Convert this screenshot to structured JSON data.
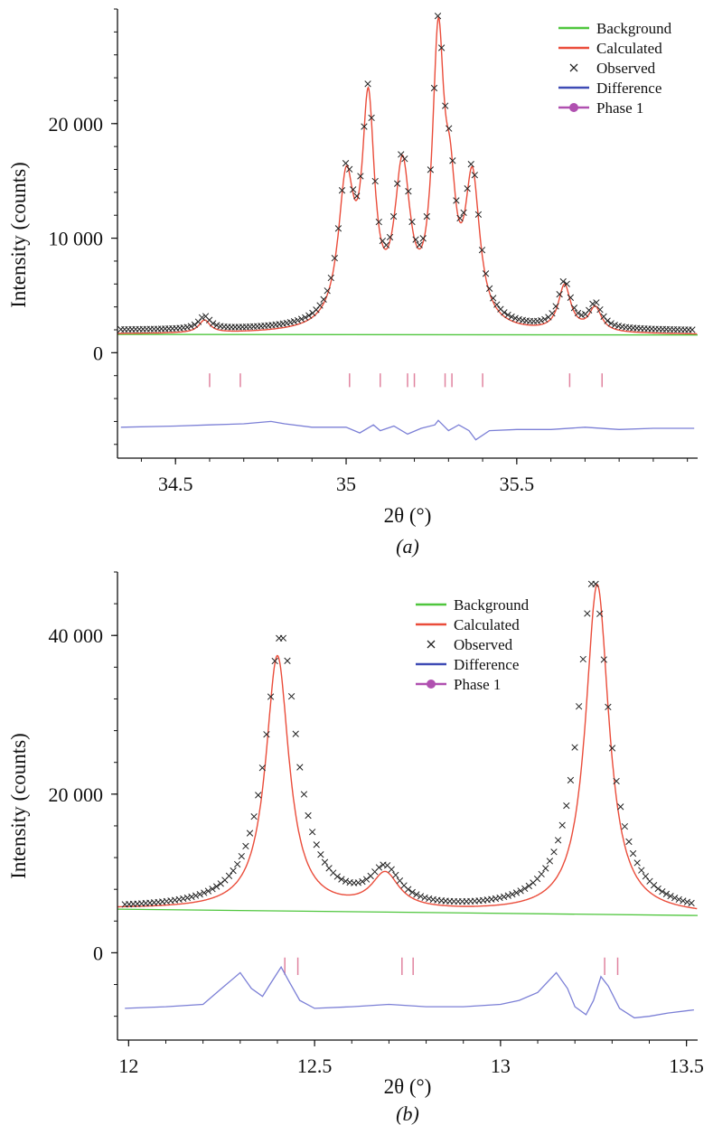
{
  "colors": {
    "background": "#4fc63d",
    "calculated": "#ea4c3a",
    "observed": "#222222",
    "difference": "#7b7fd6",
    "phase": "#e0839f",
    "legend_difference": "#3f4bb5",
    "legend_phase": "#b050b0"
  },
  "chart_data": [
    {
      "type": "line",
      "panel_label": "(a)",
      "xlabel": "2θ (°)",
      "ylabel": "Intensity (counts)",
      "xlim": [
        34.33,
        36.03
      ],
      "ylim": [
        -9200,
        30000
      ],
      "x_ticks": [
        34.5,
        35,
        35.5
      ],
      "x_tick_labels": [
        "34.5",
        "35",
        "35.5"
      ],
      "y_ticks": [
        0,
        10000,
        20000
      ],
      "y_tick_labels": [
        "0",
        "10 000",
        "20 000"
      ],
      "legend_position": "top-right",
      "legend": [
        "Background",
        "Calculated",
        "Observed",
        "Difference",
        "Phase 1"
      ],
      "background": {
        "x": [
          34.33,
          36.03
        ],
        "y": [
          1600,
          1550
        ]
      },
      "peaks": [
        {
          "center": 34.585,
          "height": 1100,
          "width": 0.02
        },
        {
          "center": 35.0,
          "height": 12200,
          "width": 0.028
        },
        {
          "center": 35.065,
          "height": 18300,
          "width": 0.022
        },
        {
          "center": 35.165,
          "height": 13200,
          "width": 0.028
        },
        {
          "center": 35.27,
          "height": 23600,
          "width": 0.021
        },
        {
          "center": 35.305,
          "height": 8200,
          "width": 0.02
        },
        {
          "center": 35.37,
          "height": 12500,
          "width": 0.026
        },
        {
          "center": 35.64,
          "height": 4000,
          "width": 0.022
        },
        {
          "center": 35.73,
          "height": 2100,
          "width": 0.022
        }
      ],
      "observed_x_range": [
        34.34,
        36.02
      ],
      "observed_step": 0.0108,
      "phase_ticks": [
        34.6,
        34.69,
        35.01,
        35.1,
        35.18,
        35.2,
        35.29,
        35.31,
        35.4,
        35.655,
        35.75
      ],
      "phase_tick_y": [
        -3000,
        -1800
      ],
      "difference_offset": -6500,
      "difference": {
        "x": [
          34.34,
          34.5,
          34.6,
          34.7,
          34.78,
          34.82,
          34.9,
          35.0,
          35.04,
          35.08,
          35.1,
          35.14,
          35.18,
          35.22,
          35.26,
          35.27,
          35.3,
          35.33,
          35.36,
          35.38,
          35.42,
          35.5,
          35.6,
          35.7,
          35.8,
          35.9,
          36.02
        ],
        "y": [
          -6500,
          -6400,
          -6300,
          -6200,
          -6000,
          -6200,
          -6500,
          -6500,
          -7000,
          -6300,
          -6800,
          -6400,
          -7100,
          -6600,
          -6300,
          -5900,
          -6800,
          -6300,
          -6800,
          -7600,
          -6800,
          -6700,
          -6700,
          -6500,
          -6700,
          -6600,
          -6600
        ]
      }
    },
    {
      "type": "line",
      "panel_label": "(b)",
      "xlabel": "2θ (°)",
      "ylabel": "Intensity (counts)",
      "xlim": [
        11.97,
        13.53
      ],
      "ylim": [
        -11000,
        48000
      ],
      "x_ticks": [
        12,
        12.5,
        13,
        13.5
      ],
      "x_tick_labels": [
        "12",
        "12.5",
        "13",
        "13.5"
      ],
      "y_ticks": [
        0,
        20000,
        40000
      ],
      "y_tick_labels": [
        "0",
        "20 000",
        "40 000"
      ],
      "legend_position": "top-right",
      "legend": [
        "Background",
        "Calculated",
        "Observed",
        "Difference",
        "Phase 1"
      ],
      "background": {
        "x": [
          11.97,
          13.53
        ],
        "y": [
          5500,
          4700
        ]
      },
      "calc_peaks": [
        {
          "center": 12.4,
          "height": 32000,
          "width": 0.038
        },
        {
          "center": 12.69,
          "height": 4400,
          "width": 0.045
        },
        {
          "center": 13.26,
          "height": 41500,
          "width": 0.038
        }
      ],
      "obs_peaks": [
        {
          "center": 12.41,
          "height": 34500,
          "width": 0.052
        },
        {
          "center": 12.69,
          "height": 4500,
          "width": 0.048
        },
        {
          "center": 13.25,
          "height": 42000,
          "width": 0.05
        }
      ],
      "observed_x_range": [
        11.99,
        13.52
      ],
      "observed_step": 0.0112,
      "phase_ticks": [
        12.42,
        12.455,
        12.735,
        12.765,
        13.28,
        13.315
      ],
      "phase_tick_y": [
        -2800,
        -600
      ],
      "difference": {
        "x": [
          11.99,
          12.1,
          12.2,
          12.25,
          12.3,
          12.33,
          12.36,
          12.38,
          12.41,
          12.43,
          12.46,
          12.5,
          12.6,
          12.7,
          12.8,
          12.9,
          13.0,
          13.05,
          13.1,
          13.15,
          13.18,
          13.2,
          13.23,
          13.25,
          13.27,
          13.29,
          13.32,
          13.36,
          13.4,
          13.45,
          13.52
        ],
        "y": [
          -7000,
          -6800,
          -6500,
          -4500,
          -2500,
          -4500,
          -5500,
          -4000,
          -1800,
          -3500,
          -6000,
          -7000,
          -6800,
          -6500,
          -6800,
          -6800,
          -6500,
          -6000,
          -5000,
          -2500,
          -4500,
          -6800,
          -7800,
          -6000,
          -3000,
          -4200,
          -7000,
          -8200,
          -8000,
          -7600,
          -7200
        ]
      }
    }
  ]
}
